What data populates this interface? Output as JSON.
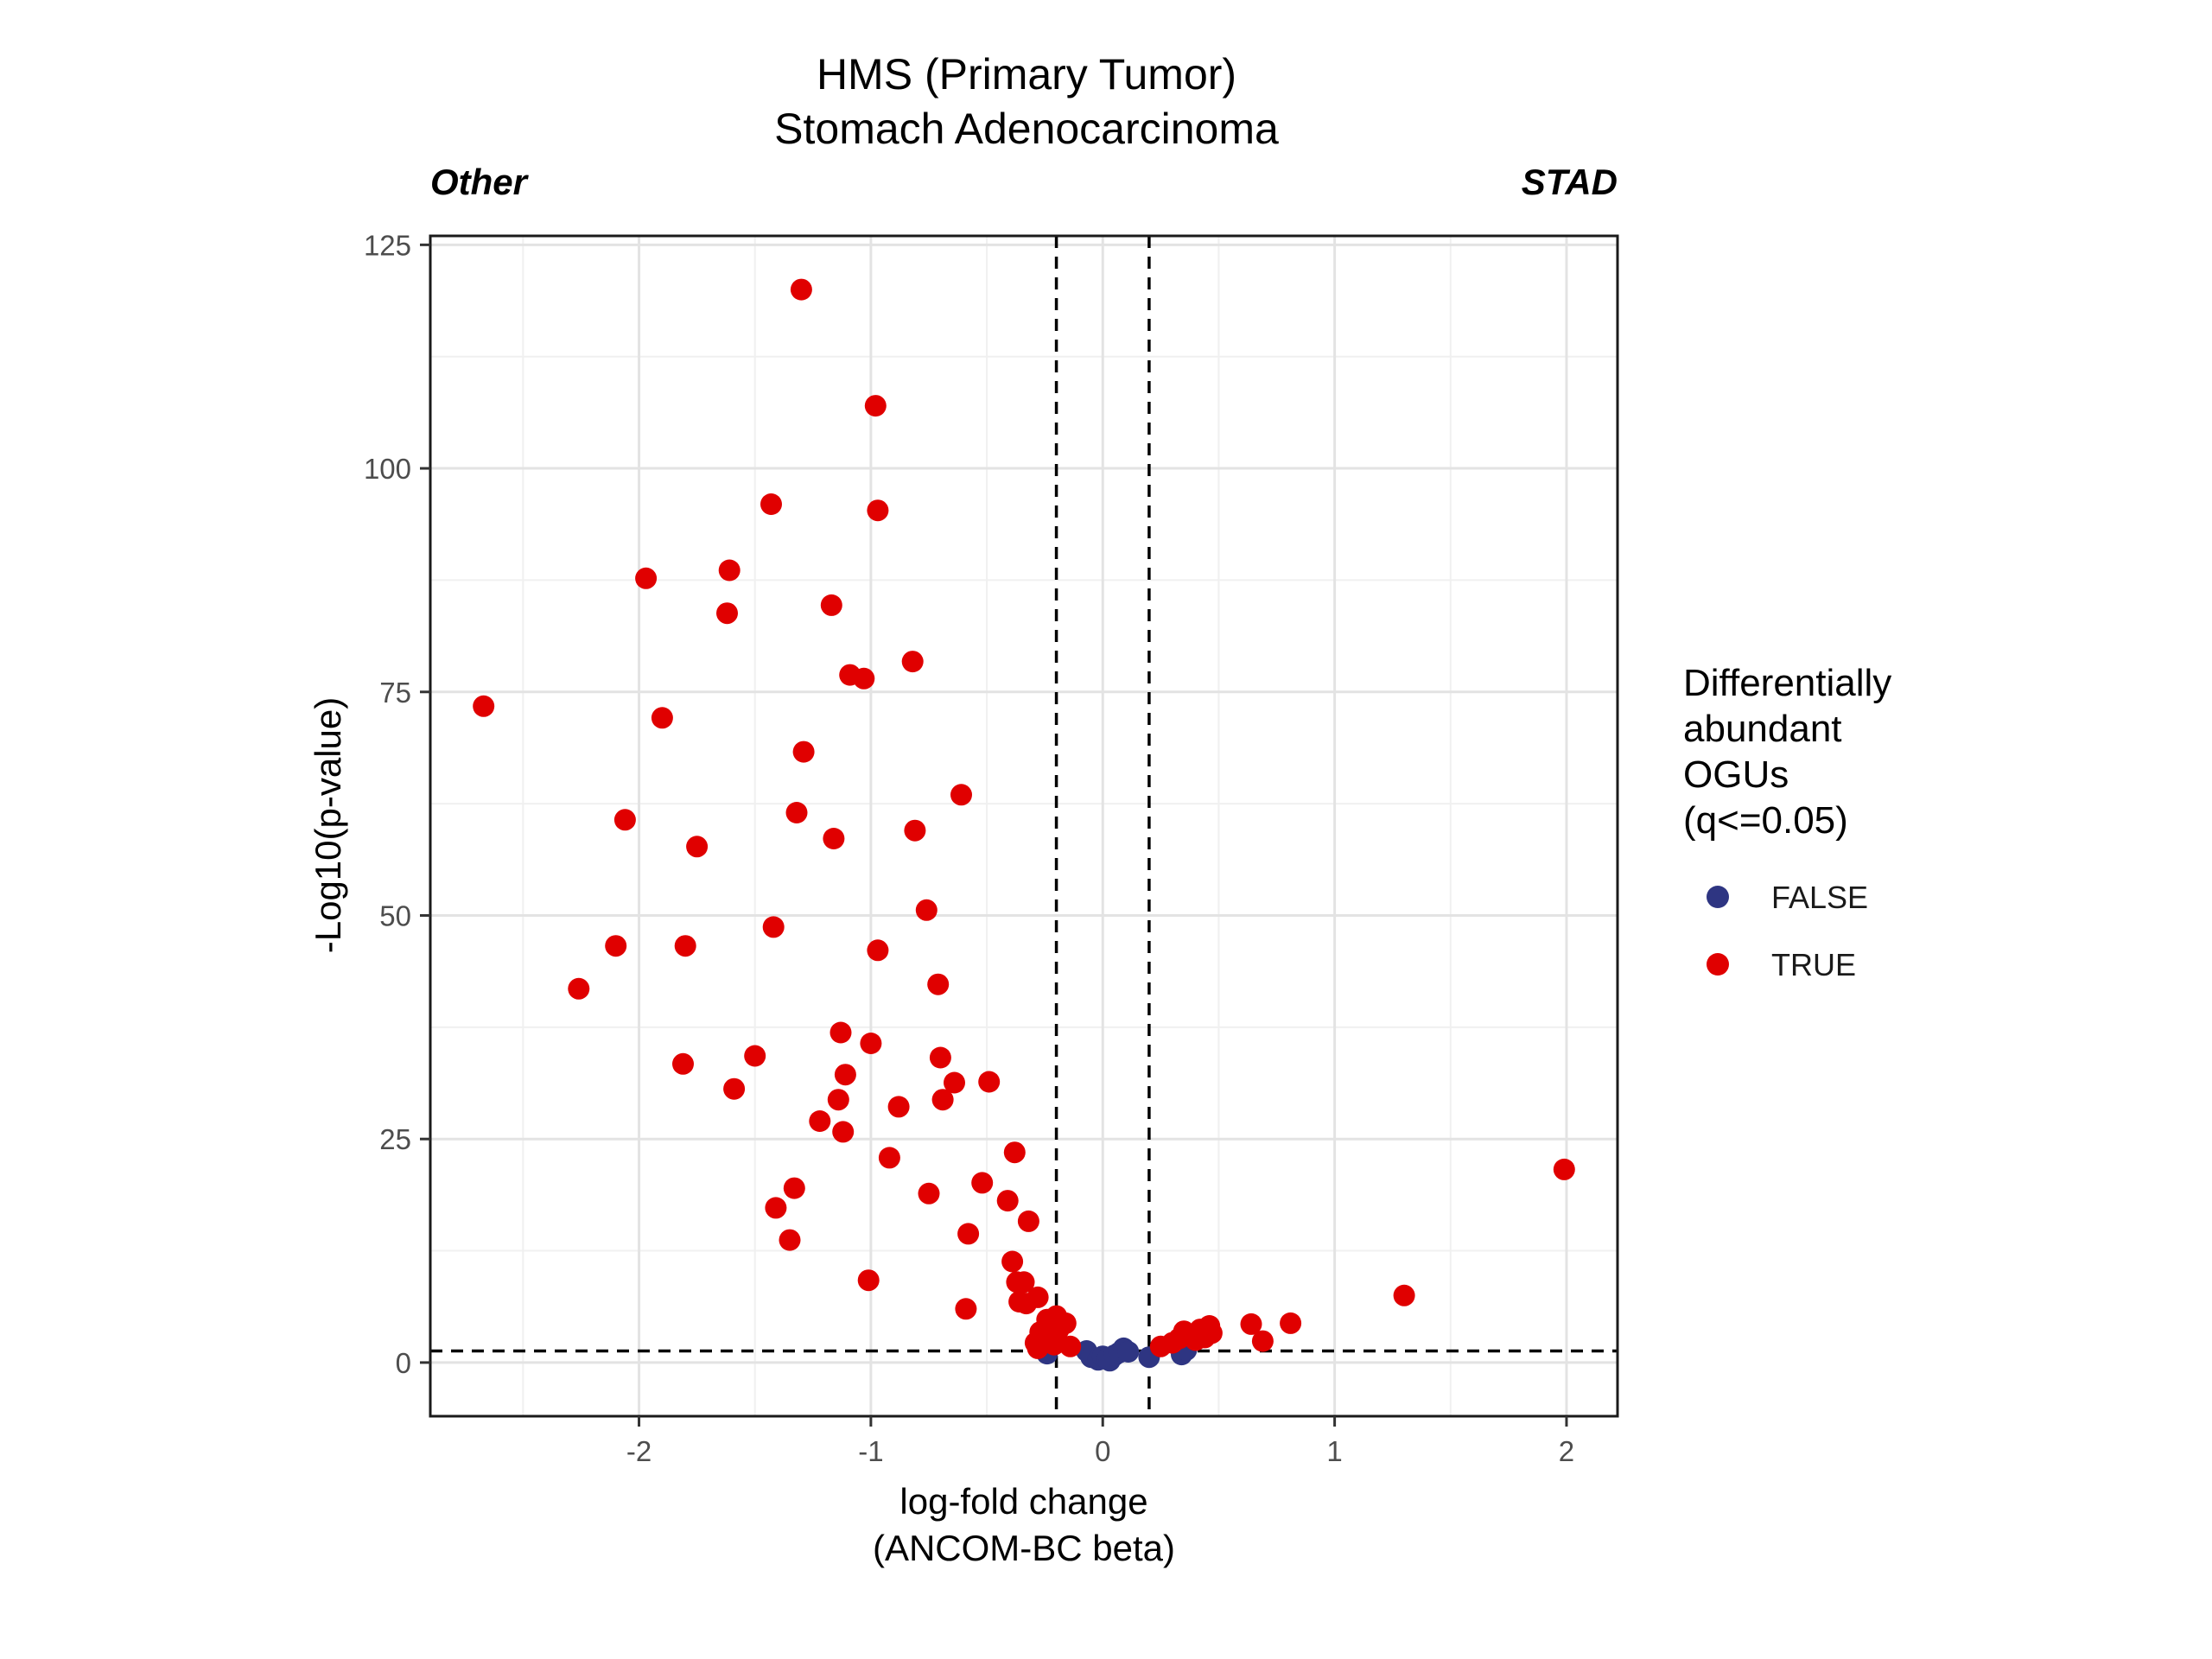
{
  "chart_data": {
    "type": "scatter",
    "title": [
      "HMS (Primary Tumor)",
      "Stomach Adenocarcinoma"
    ],
    "corner_labels": {
      "left": "Other",
      "right": "STAD"
    },
    "xlabel": [
      "log-fold change",
      "(ANCOM-BC beta)"
    ],
    "ylabel": "-Log10(p-value)",
    "xlim": [
      -2.9,
      2.22
    ],
    "ylim": [
      -6,
      126
    ],
    "x_ticks": [
      -2,
      -1,
      0,
      1,
      2
    ],
    "x_tick_labels": [
      "-2",
      "-1",
      "0",
      "1",
      "2"
    ],
    "y_ticks": [
      0,
      25,
      50,
      75,
      100,
      125
    ],
    "y_tick_labels": [
      "0",
      "25",
      "50",
      "75",
      "100",
      "125"
    ],
    "grid": true,
    "reference_lines": {
      "vertical": [
        -0.2,
        0.2
      ],
      "horizontal": [
        1.3
      ]
    },
    "legend": {
      "title": [
        "Differentially",
        "abundant",
        "OGUs",
        "(q<=0.05)"
      ],
      "position": "right",
      "entries": [
        {
          "label": "FALSE",
          "color": "#2e3582"
        },
        {
          "label": "TRUE",
          "color": "#e00000"
        }
      ]
    },
    "series": [
      {
        "name": "FALSE",
        "color": "#2e3582",
        "x": [
          -0.24,
          -0.07,
          -0.05,
          -0.02,
          0.0,
          0.02,
          0.03,
          0.05,
          0.07,
          0.09,
          0.11,
          0.2,
          0.34,
          0.36
        ],
        "y": [
          1.0,
          1.3,
          0.6,
          0.3,
          0.7,
          0.4,
          0.2,
          0.8,
          1.1,
          1.6,
          1.2,
          0.6,
          0.9,
          1.4
        ]
      },
      {
        "name": "TRUE",
        "color": "#e00000",
        "x": [
          -1.3,
          -0.98,
          -1.43,
          -0.97,
          -1.97,
          -1.61,
          -1.17,
          -1.62,
          -1.09,
          -1.03,
          -0.82,
          -2.67,
          -1.9,
          -1.29,
          -0.61,
          -1.32,
          -2.06,
          -0.81,
          -1.16,
          -1.75,
          -0.76,
          -1.42,
          -2.1,
          -1.8,
          -0.97,
          -0.71,
          -2.26,
          -1.13,
          -1.0,
          -0.7,
          -1.81,
          -1.5,
          -1.11,
          -0.64,
          -0.49,
          -1.59,
          -0.69,
          -1.14,
          -0.88,
          -1.22,
          -1.12,
          -0.38,
          -0.92,
          -0.52,
          -1.33,
          -0.75,
          -0.41,
          -1.41,
          -0.32,
          -0.58,
          -1.35,
          -0.39,
          -0.37,
          -1.01,
          -0.34,
          -0.28,
          -0.36,
          -0.59,
          -0.33,
          -0.2,
          -0.27,
          -0.23,
          -0.16,
          -0.29,
          -0.26,
          -0.19,
          -0.14,
          -0.21,
          -0.24,
          -0.28,
          0.25,
          0.3,
          0.33,
          0.35,
          0.4,
          0.42,
          0.44,
          0.46,
          0.47,
          0.64,
          0.69,
          0.81,
          1.3,
          1.99
        ],
        "y": [
          120.0,
          107.0,
          96.0,
          95.3,
          87.7,
          88.6,
          84.7,
          83.8,
          76.9,
          76.5,
          78.4,
          73.4,
          72.1,
          68.3,
          63.5,
          61.5,
          60.7,
          59.5,
          58.6,
          57.7,
          50.6,
          48.7,
          46.6,
          46.6,
          46.1,
          42.3,
          41.8,
          36.9,
          35.7,
          34.1,
          33.4,
          34.3,
          32.2,
          31.3,
          31.4,
          30.6,
          29.4,
          29.4,
          28.6,
          27.0,
          25.8,
          23.5,
          22.9,
          20.1,
          19.5,
          18.9,
          18.1,
          17.3,
          15.8,
          14.4,
          13.7,
          11.3,
          9.0,
          9.2,
          9.0,
          7.3,
          6.8,
          6.0,
          6.6,
          5.2,
          3.4,
          4.2,
          4.4,
          2.2,
          2.8,
          3.7,
          1.8,
          2.0,
          4.8,
          1.6,
          1.8,
          2.2,
          2.7,
          3.5,
          2.5,
          3.7,
          2.8,
          4.1,
          3.3,
          4.3,
          2.4,
          4.4,
          7.5,
          21.6
        ]
      }
    ]
  }
}
